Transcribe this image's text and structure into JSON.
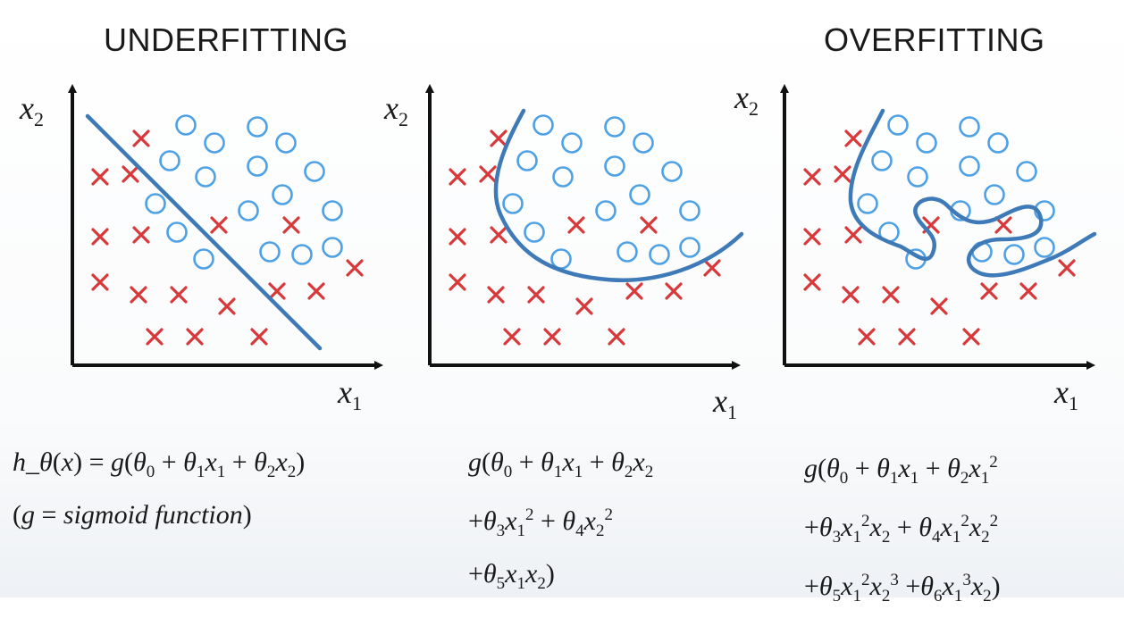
{
  "headers": {
    "left": "UNDERFITTING",
    "right": "OVERFITTING"
  },
  "axes": {
    "x_var": "x",
    "x_sub": "1",
    "y_var": "x",
    "y_sub": "2"
  },
  "formulas": {
    "left": {
      "line1": "h_θ(x) = g(θ_0 + θ_1 x_1 + θ_2 x_2)",
      "line2": "(g = sigmoid function)"
    },
    "middle": {
      "line1": "g(θ_0 + θ_1 x_1 + θ_2 x_2",
      "line2": "+θ_3 x_1^2 + θ_4 x_2^2",
      "line3": "+θ_5 x_1 x_2)"
    },
    "right": {
      "line1": "g(θ_0 + θ_1 x_1 + θ_2 x_1^2",
      "line2": "+θ_3 x_1^2 x_2 + θ_4 x_1^2 x_2^2",
      "line3": "+θ_5 x_1^2 x_2^3 +θ_6 x_1^3 x_2)"
    }
  },
  "colors": {
    "cross": "#d9383a",
    "circle": "#4fa1e6",
    "boundary": "#3f7ab8",
    "axis": "#111111"
  }
}
